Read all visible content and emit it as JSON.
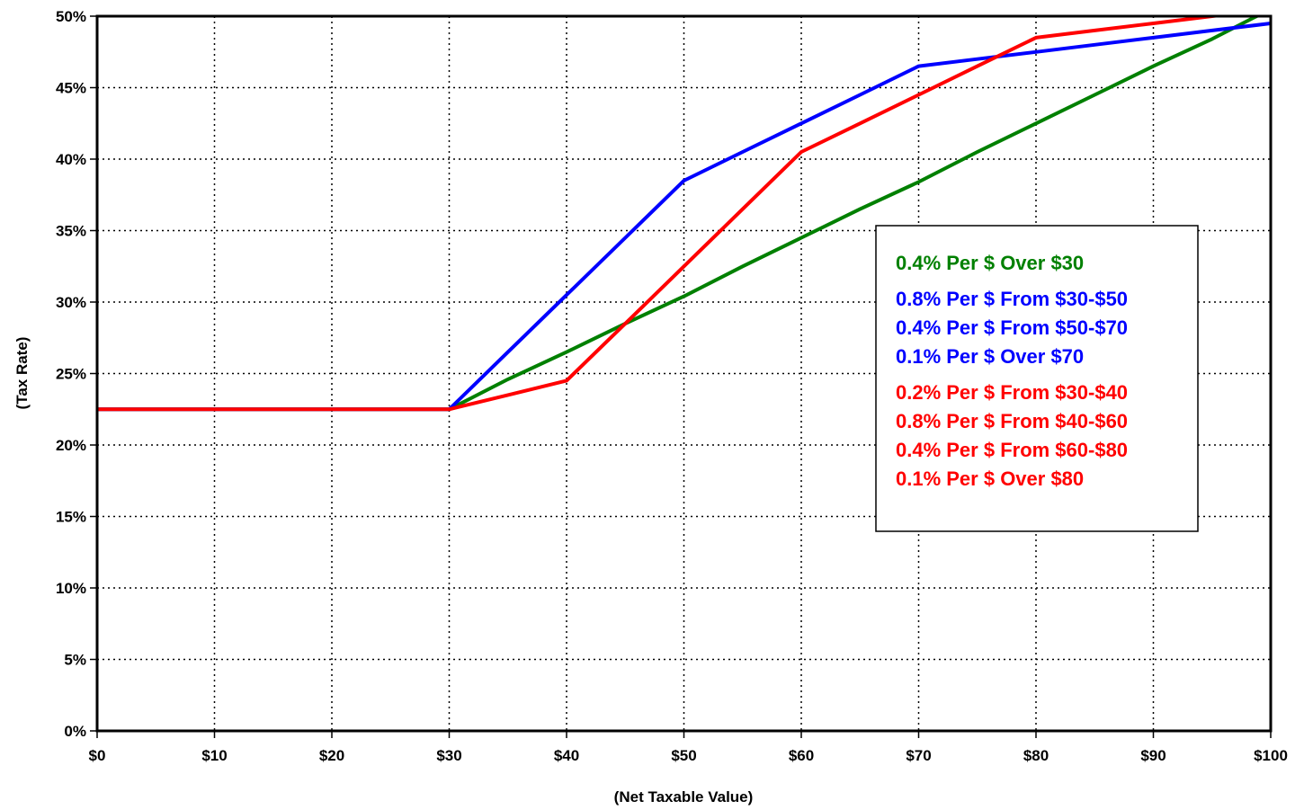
{
  "chart_data": {
    "type": "line",
    "xlabel": "(Net Taxable Value)",
    "ylabel": "(Tax Rate)",
    "xlim": [
      0,
      100
    ],
    "ylim": [
      0,
      50
    ],
    "x_tick_labels": [
      "$0",
      "$10",
      "$20",
      "$30",
      "$40",
      "$50",
      "$60",
      "$70",
      "$80",
      "$90",
      "$100"
    ],
    "y_tick_labels": [
      "0%",
      "5%",
      "10%",
      "15%",
      "20%",
      "25%",
      "30%",
      "35%",
      "40%",
      "45%",
      "50%"
    ],
    "grid": true,
    "legend_position": "right",
    "series": [
      {
        "color": "#008000",
        "x": [
          0,
          30,
          35,
          40,
          45,
          50,
          55,
          60,
          65,
          70,
          75,
          80,
          85,
          90,
          95,
          100
        ],
        "y": [
          22.5,
          22.5,
          24.6,
          26.5,
          28.5,
          30.4,
          32.5,
          34.5,
          36.5,
          38.4,
          40.5,
          42.5,
          44.5,
          46.5,
          48.4,
          50.5
        ]
      },
      {
        "color": "#0000FF",
        "x": [
          0,
          30,
          35,
          40,
          45,
          50,
          55,
          60,
          65,
          70,
          75,
          80,
          85,
          90,
          95,
          100
        ],
        "y": [
          22.5,
          22.5,
          26.5,
          30.5,
          34.5,
          38.5,
          40.5,
          42.5,
          44.5,
          46.5,
          47.0,
          47.5,
          48.0,
          48.5,
          49.0,
          49.5
        ]
      },
      {
        "color": "#FF0000",
        "x": [
          0,
          30,
          35,
          40,
          45,
          50,
          55,
          60,
          65,
          70,
          75,
          80,
          85,
          90,
          95,
          100
        ],
        "y": [
          22.5,
          22.5,
          23.5,
          24.5,
          28.5,
          32.5,
          36.5,
          40.5,
          42.5,
          44.5,
          46.5,
          48.5,
          49.0,
          49.5,
          50.0,
          50.5
        ]
      }
    ],
    "legend_groups": [
      {
        "color": "#008000",
        "lines": [
          "0.4% Per $ Over $30"
        ]
      },
      {
        "color": "#0000FF",
        "lines": [
          "0.8% Per $ From $30-$50",
          "0.4% Per $ From $50-$70",
          "0.1% Per $ Over $70"
        ]
      },
      {
        "color": "#FF0000",
        "lines": [
          "0.2% Per $ From $30-$40",
          "0.8% Per $ From $40-$60",
          "0.4% Per $ From $60-$80",
          "0.1% Per $ Over $80"
        ]
      }
    ]
  }
}
